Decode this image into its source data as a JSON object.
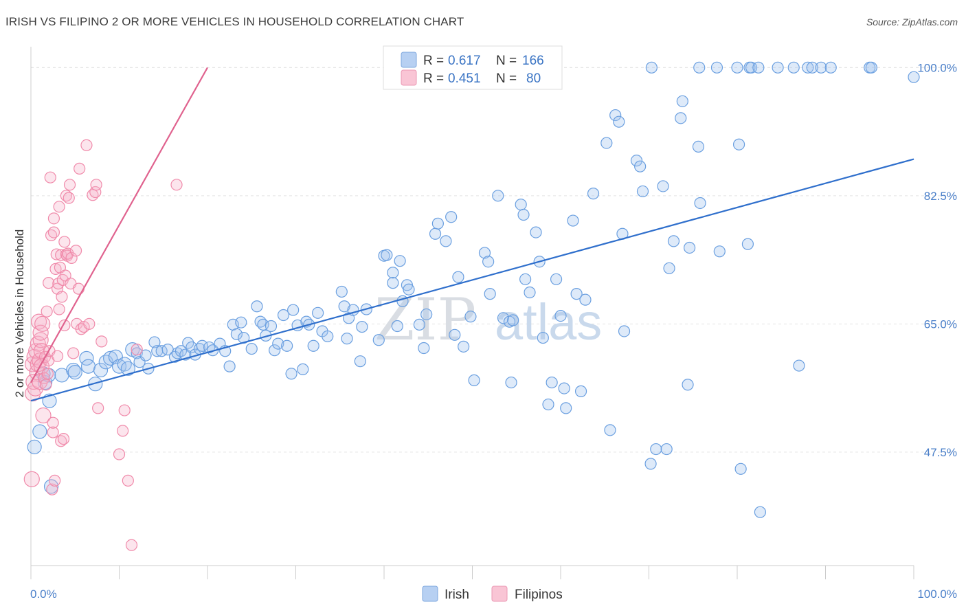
{
  "title": "IRISH VS FILIPINO 2 OR MORE VEHICLES IN HOUSEHOLD CORRELATION CHART",
  "source": "Source: ZipAtlas.com",
  "watermark": {
    "zip": "ZIP",
    "atlas": "atlas"
  },
  "legend": {
    "rows": [
      {
        "r_label": "R =",
        "r_value": "0.617",
        "n_label": "N =",
        "n_value": "166"
      },
      {
        "r_label": "R =",
        "r_value": "0.451",
        "n_label": "N =",
        "n_value": "80"
      }
    ]
  },
  "bottom_legend": {
    "irish": "Irish",
    "filipinos": "Filipinos"
  },
  "chart_data": {
    "type": "scatter",
    "title": "IRISH VS FILIPINO 2 OR MORE VEHICLES IN HOUSEHOLD CORRELATION CHART",
    "xlabel": "",
    "ylabel": "2 or more Vehicles in Household",
    "xlim": [
      0,
      100
    ],
    "ylim": [
      32.0,
      102.0
    ],
    "x_tick_labels": [
      "0.0%",
      "100.0%"
    ],
    "y_ticks": [
      47.5,
      65.0,
      82.5,
      100.0
    ],
    "y_tick_labels": [
      "47.5%",
      "65.0%",
      "82.5%",
      "100.0%"
    ],
    "grid": true,
    "legend_position": "top-center",
    "colors": {
      "irish": "#6a9fe0",
      "irish_line": "#2f6fcc",
      "filipinos": "#f08aaa",
      "filipinos_line": "#e0628e"
    },
    "series": [
      {
        "name": "Irish",
        "r": 0.617,
        "n": 166,
        "trend": [
          [
            0,
            54.5
          ],
          [
            100,
            87.5
          ]
        ],
        "points": [
          [
            0.4,
            48.2
          ],
          [
            1.0,
            50.3
          ],
          [
            1.4,
            58.2
          ],
          [
            1.6,
            57.0
          ],
          [
            2.0,
            58.0
          ],
          [
            2.1,
            54.5
          ],
          [
            2.3,
            42.8
          ],
          [
            3.5,
            58.0
          ],
          [
            4.8,
            58.7
          ],
          [
            5.0,
            58.4
          ],
          [
            6.3,
            60.3
          ],
          [
            6.5,
            59.2
          ],
          [
            7.3,
            56.8
          ],
          [
            7.9,
            58.7
          ],
          [
            8.5,
            59.8
          ],
          [
            9.0,
            60.3
          ],
          [
            9.6,
            60.5
          ],
          [
            10.0,
            59.2
          ],
          [
            10.6,
            59.5
          ],
          [
            11.0,
            58.9
          ],
          [
            11.5,
            61.5
          ],
          [
            12.0,
            61.0
          ],
          [
            12.3,
            59.8
          ],
          [
            13.0,
            60.7
          ],
          [
            13.3,
            58.9
          ],
          [
            14.0,
            62.5
          ],
          [
            14.3,
            61.3
          ],
          [
            14.8,
            61.3
          ],
          [
            15.5,
            61.5
          ],
          [
            16.3,
            60.5
          ],
          [
            16.6,
            61.0
          ],
          [
            17.0,
            61.3
          ],
          [
            17.5,
            60.8
          ],
          [
            17.8,
            62.4
          ],
          [
            18.2,
            61.8
          ],
          [
            18.6,
            60.8
          ],
          [
            19.1,
            61.6
          ],
          [
            19.4,
            62.0
          ],
          [
            20.2,
            61.8
          ],
          [
            20.6,
            61.4
          ],
          [
            21.4,
            62.3
          ],
          [
            22.0,
            61.3
          ],
          [
            22.5,
            59.2
          ],
          [
            22.9,
            64.9
          ],
          [
            23.3,
            63.6
          ],
          [
            23.8,
            65.2
          ],
          [
            24.1,
            63.1
          ],
          [
            25.0,
            61.6
          ],
          [
            25.6,
            67.4
          ],
          [
            26.0,
            65.3
          ],
          [
            26.3,
            64.9
          ],
          [
            26.6,
            63.4
          ],
          [
            27.2,
            64.7
          ],
          [
            27.6,
            61.4
          ],
          [
            28.0,
            62.3
          ],
          [
            28.6,
            66.2
          ],
          [
            29.0,
            62.0
          ],
          [
            29.5,
            58.2
          ],
          [
            29.7,
            66.9
          ],
          [
            30.2,
            64.8
          ],
          [
            30.8,
            58.8
          ],
          [
            31.2,
            65.3
          ],
          [
            31.5,
            64.9
          ],
          [
            32.0,
            62.0
          ],
          [
            32.5,
            66.5
          ],
          [
            33.0,
            64.0
          ],
          [
            33.6,
            63.3
          ],
          [
            35.2,
            69.4
          ],
          [
            35.5,
            67.4
          ],
          [
            35.8,
            63.0
          ],
          [
            36.0,
            65.8
          ],
          [
            36.5,
            66.9
          ],
          [
            37.3,
            59.9
          ],
          [
            37.5,
            64.6
          ],
          [
            38.0,
            67.0
          ],
          [
            39.4,
            62.8
          ],
          [
            40.0,
            74.3
          ],
          [
            40.3,
            74.4
          ],
          [
            41.0,
            72.0
          ],
          [
            41.0,
            70.6
          ],
          [
            41.5,
            64.7
          ],
          [
            41.8,
            73.6
          ],
          [
            42.1,
            68.1
          ],
          [
            42.6,
            70.3
          ],
          [
            42.8,
            69.7
          ],
          [
            44.0,
            64.9
          ],
          [
            44.5,
            61.7
          ],
          [
            44.8,
            66.3
          ],
          [
            45.8,
            77.3
          ],
          [
            46.1,
            78.7
          ],
          [
            47.0,
            76.3
          ],
          [
            47.6,
            79.6
          ],
          [
            48.4,
            71.4
          ],
          [
            48.0,
            63.5
          ],
          [
            49.0,
            61.9
          ],
          [
            49.8,
            66.0
          ],
          [
            50.2,
            57.3
          ],
          [
            51.4,
            74.7
          ],
          [
            51.8,
            73.5
          ],
          [
            52.0,
            69.1
          ],
          [
            52.9,
            82.5
          ],
          [
            53.5,
            65.8
          ],
          [
            54.2,
            65.3
          ],
          [
            54.4,
            57.0
          ],
          [
            54.6,
            65.5
          ],
          [
            55.5,
            81.3
          ],
          [
            55.8,
            79.9
          ],
          [
            56.0,
            71.1
          ],
          [
            56.5,
            69.3
          ],
          [
            57.2,
            77.5
          ],
          [
            57.6,
            73.5
          ],
          [
            58.0,
            63.1
          ],
          [
            58.6,
            54.0
          ],
          [
            59.0,
            57.0
          ],
          [
            59.5,
            71.1
          ],
          [
            60.0,
            66.1
          ],
          [
            60.4,
            56.2
          ],
          [
            60.6,
            53.5
          ],
          [
            61.4,
            79.1
          ],
          [
            61.8,
            69.1
          ],
          [
            62.3,
            55.8
          ],
          [
            62.8,
            68.3
          ],
          [
            63.7,
            82.8
          ],
          [
            65.2,
            89.7
          ],
          [
            65.6,
            50.5
          ],
          [
            66.2,
            93.5
          ],
          [
            66.6,
            92.6
          ],
          [
            67.0,
            77.3
          ],
          [
            67.2,
            64.0
          ],
          [
            68.6,
            87.3
          ],
          [
            69.0,
            86.5
          ],
          [
            69.3,
            83.1
          ],
          [
            70.2,
            45.9
          ],
          [
            70.3,
            100.0
          ],
          [
            70.8,
            47.9
          ],
          [
            71.6,
            83.8
          ],
          [
            72.0,
            47.9
          ],
          [
            72.3,
            72.6
          ],
          [
            72.8,
            76.3
          ],
          [
            73.6,
            93.1
          ],
          [
            73.8,
            95.4
          ],
          [
            74.4,
            56.7
          ],
          [
            74.6,
            75.4
          ],
          [
            75.6,
            89.2
          ],
          [
            75.7,
            100.0
          ],
          [
            75.8,
            81.5
          ],
          [
            77.7,
            100.0
          ],
          [
            78.0,
            74.9
          ],
          [
            80.0,
            100.0
          ],
          [
            80.2,
            89.5
          ],
          [
            80.4,
            45.2
          ],
          [
            81.2,
            75.9
          ],
          [
            81.4,
            100.0
          ],
          [
            81.6,
            100.0
          ],
          [
            82.4,
            100.0
          ],
          [
            82.6,
            39.3
          ],
          [
            84.6,
            100.0
          ],
          [
            86.4,
            100.0
          ],
          [
            87.0,
            59.3
          ],
          [
            88.0,
            100.0
          ],
          [
            88.5,
            100.0
          ],
          [
            89.5,
            100.0
          ],
          [
            90.6,
            100.0
          ],
          [
            95.0,
            100.0
          ],
          [
            95.2,
            100.0
          ],
          [
            100.0,
            98.7
          ]
        ]
      },
      {
        "name": "Filipinos",
        "r": 0.451,
        "n": 80,
        "trend": [
          [
            0,
            57.0
          ],
          [
            20,
            100.0
          ]
        ],
        "points": [
          [
            0.1,
            43.8
          ],
          [
            0.2,
            55.5
          ],
          [
            0.2,
            59.5
          ],
          [
            0.3,
            57.1
          ],
          [
            0.4,
            60.5
          ],
          [
            0.5,
            56.2
          ],
          [
            0.6,
            61.3
          ],
          [
            0.7,
            58.4
          ],
          [
            0.8,
            59.5
          ],
          [
            0.8,
            62.3
          ],
          [
            0.9,
            65.3
          ],
          [
            1.0,
            57.1
          ],
          [
            1.0,
            60.0
          ],
          [
            1.1,
            62.8
          ],
          [
            1.1,
            63.8
          ],
          [
            1.2,
            59.2
          ],
          [
            1.2,
            61.3
          ],
          [
            1.3,
            65.0
          ],
          [
            1.4,
            52.5
          ],
          [
            1.5,
            57.6
          ],
          [
            1.6,
            60.5
          ],
          [
            1.7,
            56.7
          ],
          [
            1.8,
            66.7
          ],
          [
            1.9,
            58.2
          ],
          [
            2.0,
            60.0
          ],
          [
            2.0,
            70.6
          ],
          [
            2.1,
            61.3
          ],
          [
            2.2,
            85.0
          ],
          [
            2.3,
            77.1
          ],
          [
            2.4,
            42.4
          ],
          [
            2.5,
            50.2
          ],
          [
            2.5,
            51.5
          ],
          [
            2.6,
            77.5
          ],
          [
            2.6,
            79.4
          ],
          [
            2.7,
            43.6
          ],
          [
            2.8,
            72.5
          ],
          [
            2.9,
            74.5
          ],
          [
            3.0,
            60.6
          ],
          [
            3.0,
            69.8
          ],
          [
            3.1,
            70.5
          ],
          [
            3.2,
            67.0
          ],
          [
            3.2,
            81.0
          ],
          [
            3.3,
            72.7
          ],
          [
            3.4,
            49.0
          ],
          [
            3.4,
            74.4
          ],
          [
            3.5,
            68.7
          ],
          [
            3.6,
            71.0
          ],
          [
            3.7,
            49.3
          ],
          [
            3.8,
            76.2
          ],
          [
            3.8,
            64.8
          ],
          [
            3.9,
            71.6
          ],
          [
            4.0,
            82.5
          ],
          [
            4.0,
            74.5
          ],
          [
            4.1,
            74.3
          ],
          [
            4.2,
            74.6
          ],
          [
            4.3,
            82.2
          ],
          [
            4.4,
            84.0
          ],
          [
            4.5,
            70.5
          ],
          [
            4.6,
            74.0
          ],
          [
            4.8,
            61.0
          ],
          [
            5.1,
            75.0
          ],
          [
            5.2,
            65.0
          ],
          [
            5.4,
            69.8
          ],
          [
            5.5,
            86.2
          ],
          [
            5.7,
            64.3
          ],
          [
            6.0,
            64.6
          ],
          [
            6.3,
            89.4
          ],
          [
            6.6,
            65.0
          ],
          [
            7.0,
            82.6
          ],
          [
            7.3,
            83.0
          ],
          [
            7.4,
            84.0
          ],
          [
            7.6,
            53.5
          ],
          [
            8.0,
            62.6
          ],
          [
            10.0,
            47.2
          ],
          [
            10.4,
            50.4
          ],
          [
            10.6,
            53.2
          ],
          [
            11.0,
            43.6
          ],
          [
            11.4,
            34.8
          ],
          [
            12.0,
            61.5
          ],
          [
            16.5,
            84.0
          ]
        ]
      }
    ]
  }
}
